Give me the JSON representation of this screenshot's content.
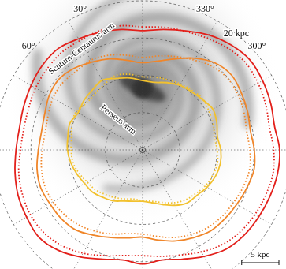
{
  "chart_data": {
    "type": "polar_line",
    "x": [
      0,
      10,
      20,
      30,
      40,
      50,
      60,
      70,
      80,
      90,
      100,
      110,
      120,
      130,
      140,
      150,
      160,
      170,
      180,
      190,
      200,
      210,
      220,
      230,
      240,
      250,
      260,
      270,
      280,
      290,
      300,
      310,
      320,
      330,
      340,
      350
    ],
    "rlim": [
      0,
      20
    ],
    "rticks": [
      {
        "value": 5,
        "label": null
      },
      {
        "value": 10,
        "label": null
      },
      {
        "value": 15,
        "label": null
      },
      {
        "value": 20,
        "label": "20 kpc"
      }
    ],
    "theta_ticks": [
      {
        "value": 0,
        "label": null
      },
      {
        "value": 30,
        "label": "30°"
      },
      {
        "value": 60,
        "label": "60°"
      },
      {
        "value": 90,
        "label": null
      },
      {
        "value": 120,
        "label": null
      },
      {
        "value": 150,
        "label": null
      },
      {
        "value": 180,
        "label": null
      },
      {
        "value": 210,
        "label": null
      },
      {
        "value": 240,
        "label": null
      },
      {
        "value": 270,
        "label": null
      },
      {
        "value": 300,
        "label": "300°"
      },
      {
        "value": 330,
        "label": "330°"
      }
    ],
    "grid": true,
    "annotations": [
      "Scutum-Centaurus arm",
      "Perseus arm"
    ],
    "scale_bar": {
      "label": "5 kpc",
      "value": 5
    },
    "series": [
      {
        "color": "#e3201b",
        "line_style": "solid",
        "values": [
          16.0,
          16.4,
          16.8,
          17.2,
          17.7,
          17.6,
          17.3,
          17.0,
          16.8,
          17.0,
          17.4,
          17.8,
          18.0,
          18.2,
          17.6,
          16.6,
          15.6,
          15.0,
          15.3,
          15.0,
          15.6,
          16.5,
          17.4,
          17.8,
          18.0,
          18.2,
          18.4,
          18.4,
          18.0,
          18.3,
          18.6,
          18.8,
          18.4,
          17.8,
          17.0,
          16.4
        ]
      },
      {
        "color": "#e3201b",
        "line_style": "dotted",
        "values": [
          16.5,
          16.9,
          17.0,
          16.9,
          17.0,
          16.8,
          16.6,
          16.3,
          16.2,
          16.4,
          16.9,
          17.2,
          17.4,
          17.3,
          16.8,
          16.0,
          15.1,
          14.4,
          14.2,
          14.5,
          15.0,
          15.8,
          16.6,
          17.1,
          17.4,
          17.6,
          17.8,
          17.6,
          17.3,
          17.6,
          17.9,
          18.1,
          17.8,
          17.3,
          16.9,
          16.7
        ]
      },
      {
        "color": "#f0862a",
        "line_style": "solid",
        "values": [
          11.7,
          12.2,
          13.0,
          13.6,
          14.3,
          14.7,
          14.5,
          14.0,
          13.8,
          14.0,
          14.4,
          14.6,
          14.4,
          14.3,
          14.0,
          13.2,
          12.5,
          12.0,
          11.7,
          12.3,
          13.0,
          13.6,
          14.2,
          14.4,
          14.6,
          14.9,
          15.2,
          15.0,
          14.7,
          15.0,
          15.3,
          15.6,
          15.2,
          14.2,
          13.0,
          12.1
        ]
      },
      {
        "color": "#f0862a",
        "line_style": "dotted",
        "values": [
          12.4,
          12.9,
          13.5,
          13.9,
          13.8,
          14.0,
          13.9,
          13.5,
          13.3,
          13.5,
          13.8,
          14.0,
          13.9,
          13.6,
          13.2,
          12.6,
          12.0,
          11.4,
          11.3,
          11.8,
          12.5,
          13.1,
          13.6,
          13.9,
          14.1,
          14.4,
          14.6,
          14.4,
          14.2,
          14.5,
          14.8,
          14.9,
          14.6,
          13.9,
          13.3,
          12.8
        ]
      },
      {
        "color": "#f2c12e",
        "line_style": "solid",
        "values": [
          9.3,
          9.8,
          10.2,
          10.8,
          10.5,
          10.3,
          10.0,
          10.4,
          10.2,
          10.1,
          9.8,
          9.4,
          9.0,
          8.8,
          8.3,
          7.9,
          7.3,
          7.0,
          6.9,
          7.2,
          7.8,
          8.6,
          9.3,
          9.5,
          10.0,
          10.4,
          10.6,
          10.5,
          10.2,
          10.6,
          10.9,
          10.5,
          10.2,
          10.0,
          9.6,
          9.2
        ]
      },
      {
        "color": "#f2c12e",
        "line_style": "dotted",
        "values": [
          9.8,
          10.3,
          10.6,
          10.2,
          9.9,
          9.8,
          10.3,
          10.1,
          9.7,
          9.6,
          9.5,
          9.1,
          8.6,
          8.3,
          7.8,
          7.4,
          7.0,
          6.7,
          6.8,
          7.0,
          7.5,
          8.2,
          8.8,
          9.2,
          9.7,
          10.0,
          10.2,
          10.0,
          9.8,
          10.1,
          10.3,
          10.6,
          10.4,
          10.2,
          10.0,
          9.9
        ]
      }
    ]
  }
}
